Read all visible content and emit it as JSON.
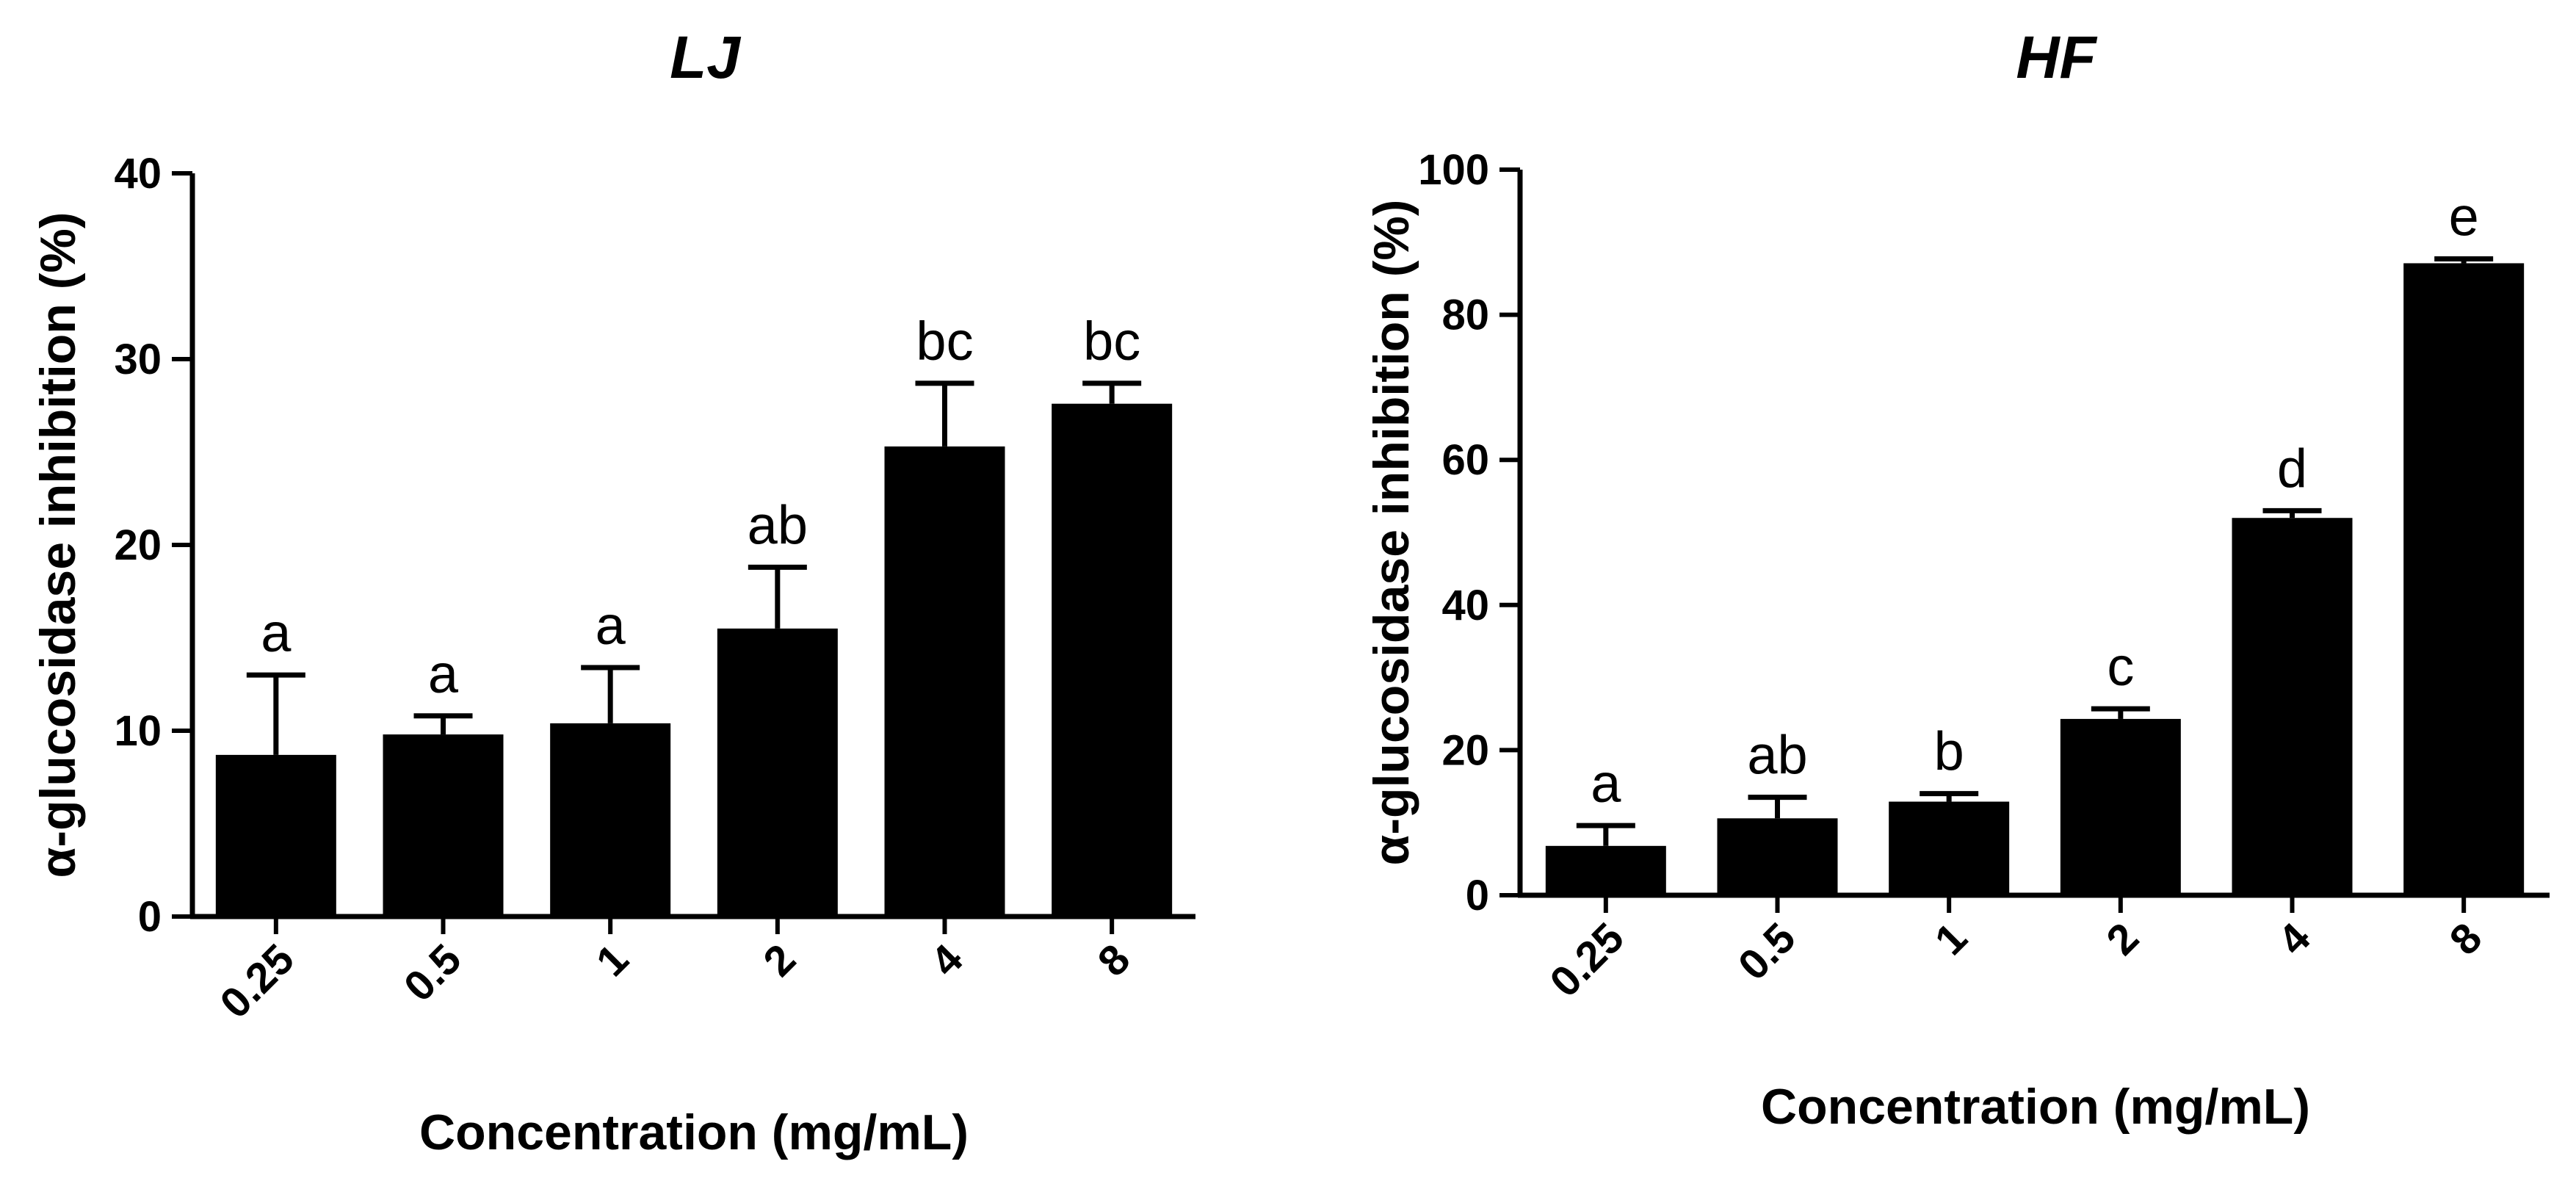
{
  "chart_data": [
    {
      "type": "bar",
      "title": "LJ",
      "xlabel": "Concentration (mg/mL)",
      "ylabel": "α-glucosidase inhibition (%)",
      "ylim": [
        0,
        40
      ],
      "yticks": [
        0,
        10,
        20,
        30,
        40
      ],
      "categories": [
        "0.25",
        "0.5",
        "1",
        "2",
        "4",
        "8"
      ],
      "values": [
        8.7,
        9.8,
        10.4,
        15.5,
        25.3,
        27.6
      ],
      "errors": [
        4.3,
        1.0,
        3.0,
        3.3,
        3.4,
        1.1
      ],
      "significance": [
        "a",
        "a",
        "a",
        "ab",
        "bc",
        "bc"
      ],
      "bar_color": "#000000",
      "grid": false
    },
    {
      "type": "bar",
      "title": "HF",
      "xlabel": "Concentration (mg/mL)",
      "ylabel": "α-glucosidase inhibition (%)",
      "ylim": [
        0,
        100
      ],
      "yticks": [
        0,
        20,
        40,
        60,
        80,
        100
      ],
      "categories": [
        "0.25",
        "0.5",
        "1",
        "2",
        "4",
        "8"
      ],
      "values": [
        6.8,
        10.6,
        12.9,
        24.3,
        52.0,
        87.1
      ],
      "errors": [
        2.8,
        2.9,
        1.1,
        1.4,
        1.0,
        0.6
      ],
      "significance": [
        "a",
        "ab",
        "b",
        "c",
        "d",
        "e"
      ],
      "bar_color": "#000000",
      "grid": false
    }
  ]
}
